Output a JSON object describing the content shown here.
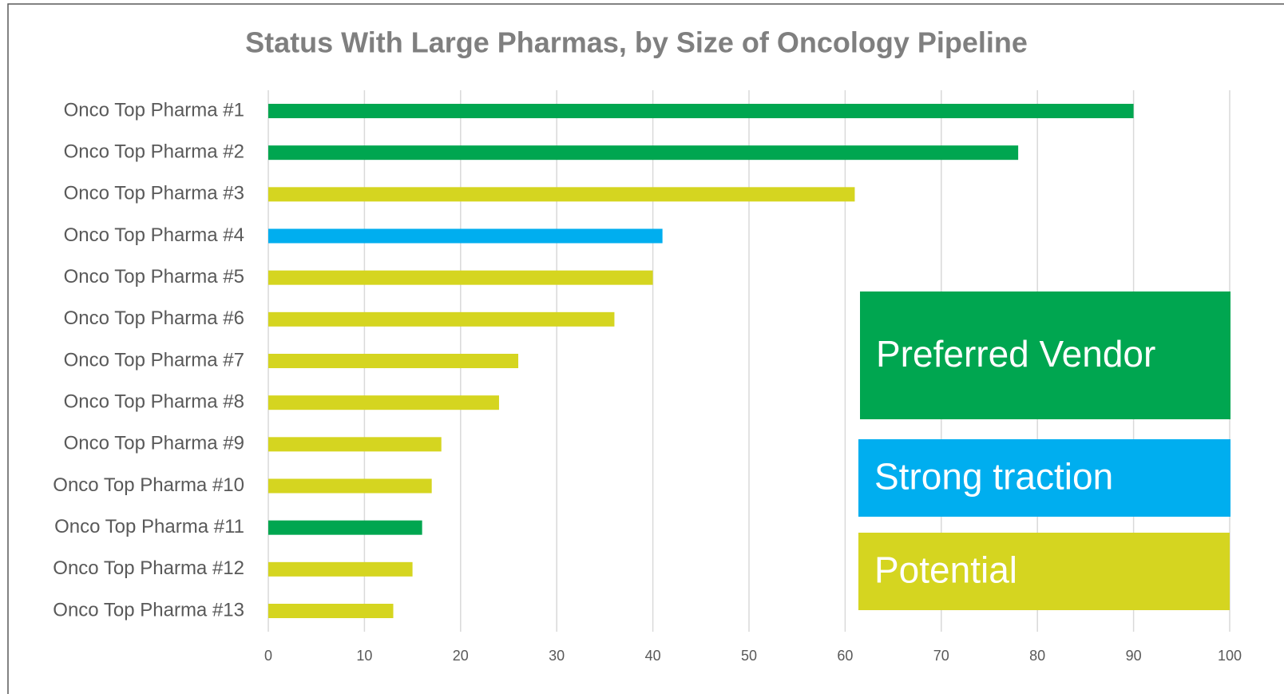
{
  "chart_data": {
    "type": "barh",
    "title": "Status With Large Pharmas, by Size of Oncology Pipeline",
    "categories": [
      "Onco Top Pharma #1",
      "Onco Top Pharma #2",
      "Onco Top Pharma #3",
      "Onco Top Pharma #4",
      "Onco Top Pharma #5",
      "Onco Top Pharma #6",
      "Onco Top Pharma #7",
      "Onco Top Pharma #8",
      "Onco Top Pharma #9",
      "Onco Top Pharma #10",
      "Onco Top Pharma #11",
      "Onco Top Pharma #12",
      "Onco Top Pharma #13"
    ],
    "series": [
      {
        "name": "Preferred Vendor",
        "color": "#00a650",
        "values": [
          90,
          78,
          null,
          null,
          null,
          null,
          null,
          null,
          null,
          null,
          16,
          null,
          null
        ]
      },
      {
        "name": "Strong traction",
        "color": "#00aeef",
        "values": [
          null,
          null,
          null,
          41,
          null,
          null,
          null,
          null,
          null,
          null,
          null,
          null,
          null
        ]
      },
      {
        "name": "Potential",
        "color": "#d5d520",
        "values": [
          null,
          null,
          61,
          null,
          40,
          36,
          26,
          24,
          18,
          17,
          null,
          15,
          13
        ]
      }
    ],
    "xlim": [
      0,
      100
    ],
    "xticks": [
      0,
      10,
      20,
      30,
      40,
      50,
      60,
      70,
      80,
      90,
      100
    ],
    "grid": true
  }
}
